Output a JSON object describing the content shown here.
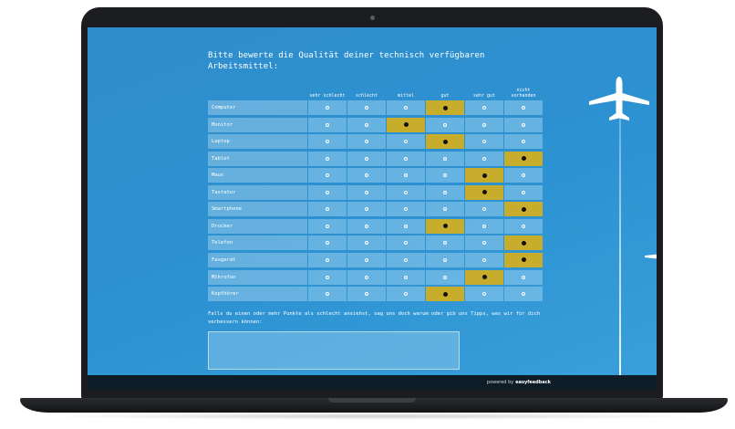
{
  "survey": {
    "question": "Bitte bewerte die Qualität deiner technisch verfügbaren Arbeitsmittel:",
    "columns": [
      "sehr schlecht",
      "schlecht",
      "mittel",
      "gut",
      "sehr gut",
      "nicht vorhanden"
    ],
    "rows": [
      {
        "label": "Computer",
        "selected": 3
      },
      {
        "label": "Monitor",
        "selected": 2
      },
      {
        "label": "Laptop",
        "selected": 3
      },
      {
        "label": "Tablet",
        "selected": 5
      },
      {
        "label": "Maus",
        "selected": 4
      },
      {
        "label": "Tastatur",
        "selected": 4
      },
      {
        "label": "Smartphone",
        "selected": 5
      },
      {
        "label": "Drucker",
        "selected": 3
      },
      {
        "label": "Telefon",
        "selected": 5
      },
      {
        "label": "Faxgerät",
        "selected": 5
      },
      {
        "label": "Mikrofon",
        "selected": 4
      },
      {
        "label": "Kopfhörer",
        "selected": 3
      }
    ],
    "followup_prompt": "Falls du einen oder mehr Punkte als schlecht ansiehst, sag uns doch warum oder gib uns Tipps, was wir für dich verbessern können:",
    "followup_value": ""
  },
  "footer": {
    "powered_by": "powered by",
    "brand": "easyfeedback"
  },
  "colors": {
    "background": "#2d92d2",
    "selected": "#c8ad2c",
    "footer": "#0e1c27"
  },
  "icons": [
    "airplane-icon",
    "radio-icon"
  ]
}
